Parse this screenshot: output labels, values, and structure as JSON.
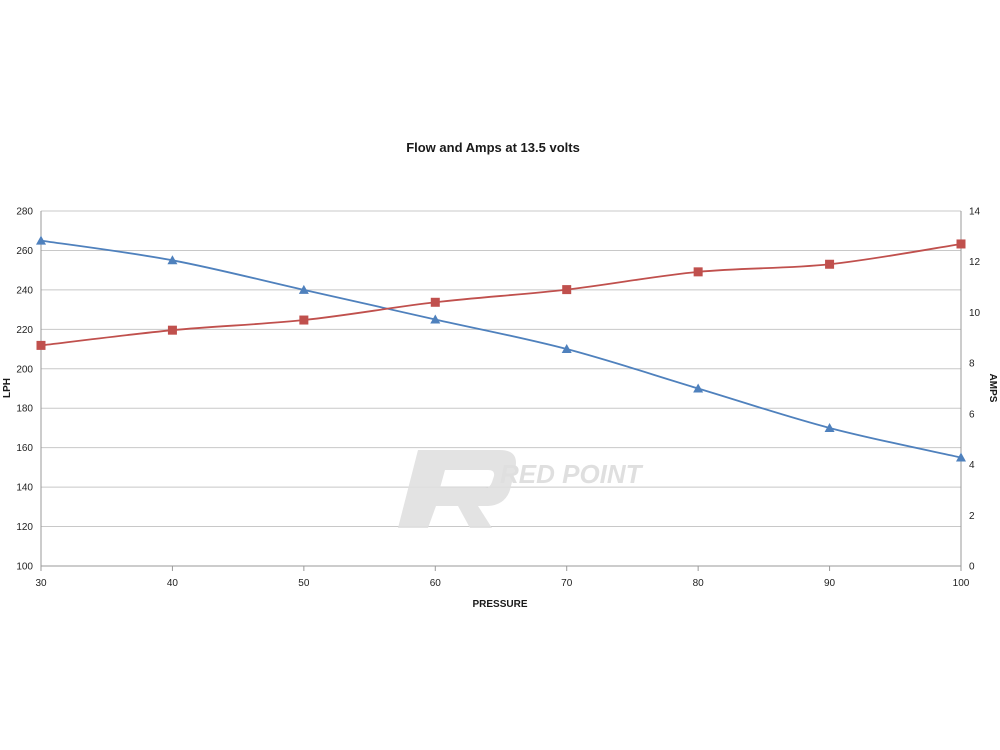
{
  "chart_data": {
    "type": "line",
    "title": "Flow and Amps at 13.5 volts",
    "xlabel": "PRESSURE",
    "ylabel": "LPH",
    "y2label": "AMPS",
    "x": [
      30,
      40,
      50,
      60,
      70,
      80,
      90,
      100
    ],
    "xlim": [
      30,
      100
    ],
    "ylim": [
      100,
      280
    ],
    "y2lim": [
      0,
      14
    ],
    "xticks": [
      "30",
      "40",
      "50",
      "60",
      "70",
      "80",
      "90",
      "100"
    ],
    "yticks": [
      "100",
      "120",
      "140",
      "160",
      "180",
      "200",
      "220",
      "240",
      "260",
      "280"
    ],
    "y2ticks": [
      "0",
      "2",
      "4",
      "6",
      "8",
      "10",
      "12",
      "14"
    ],
    "grid": true,
    "series": [
      {
        "axis": "left",
        "marker": "triangle",
        "color": "#4f81bd",
        "values": [
          265,
          255,
          240,
          225,
          210,
          190,
          170,
          155
        ]
      },
      {
        "axis": "right",
        "marker": "square",
        "color": "#c0504d",
        "values": [
          8.7,
          9.3,
          9.7,
          10.4,
          10.9,
          11.6,
          11.9,
          12.7
        ]
      }
    ],
    "watermark": "RED POINT"
  }
}
